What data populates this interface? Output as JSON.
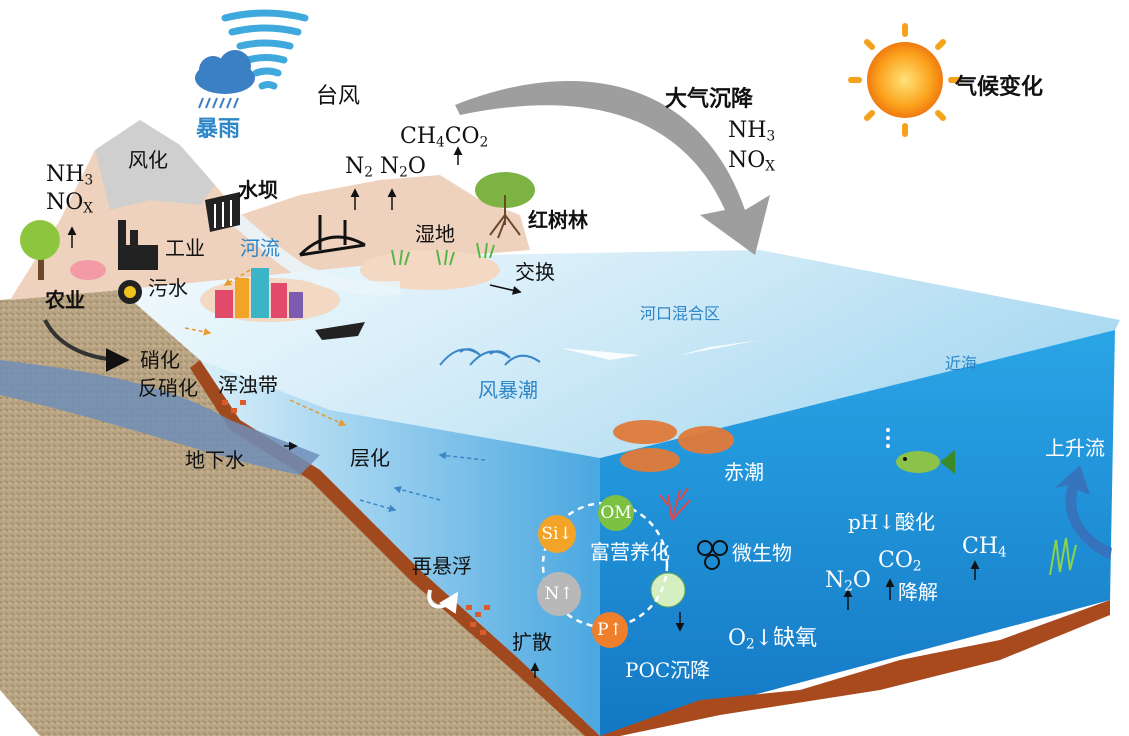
{
  "weather": {
    "typhoon": "台风",
    "rainstorm": "暴雨",
    "climate": "气候变化",
    "deposition": "大气沉降",
    "nh3": "NH",
    "nh3_sub": "3",
    "nox": "NO",
    "nox_sub": "X"
  },
  "land": {
    "weathering": "风化",
    "nh3": "NH",
    "nh3_sub": "3",
    "nox": "NO",
    "nox_sub": "X",
    "dam": "水坝",
    "industry": "工业",
    "river": "河流",
    "sewage": "污水",
    "agriculture": "农业",
    "wetland": "湿地",
    "mangrove": "红树林",
    "exchange": "交换",
    "ch4": "CH",
    "ch4_sub": "4",
    "co2": "CO",
    "co2_sub": "2",
    "n2": "N",
    "n2_sub": "2",
    "n2o": "N",
    "n2o_sub": "2",
    "n2o_tail": "O"
  },
  "ocean": {
    "estuary": "河口混合区",
    "nearshore": "近海",
    "storm_surge": "风暴潮",
    "nitrification": "硝化",
    "denitrification": "反硝化",
    "turbidity": "浑浊带",
    "groundwater": "地下水",
    "stratification": "层化",
    "red_tide": "赤潮",
    "upwelling": "上升流",
    "acidification": "pH↓酸化",
    "resuspension": "再悬浮",
    "diffusion": "扩散",
    "eutrophication": "富营养化",
    "microbes": "微生物",
    "poc": "POC沉降",
    "hypoxia_o": "O",
    "hypoxia_sub": "2",
    "hypoxia": "↓缺氧",
    "degradation": "降解",
    "co2": "CO",
    "co2_sub": "2",
    "ch4": "CH",
    "ch4_sub": "4",
    "n2o": "N",
    "n2o_sub": "2",
    "n2o_tail": "O"
  },
  "cycle": {
    "om": "OM",
    "si": "Si↓",
    "n": "N↑",
    "p": "P↑"
  },
  "colors": {
    "sea_top": "#c9e8f6",
    "sea_front": "#1a8fd6",
    "soil": "#b8a07a",
    "aquifer": "#6f8fb8",
    "om": "#7cc142",
    "si": "#f2a428",
    "n": "#b8b8b8",
    "p": "#f07f2c",
    "red_tide": "#e07a3a"
  }
}
